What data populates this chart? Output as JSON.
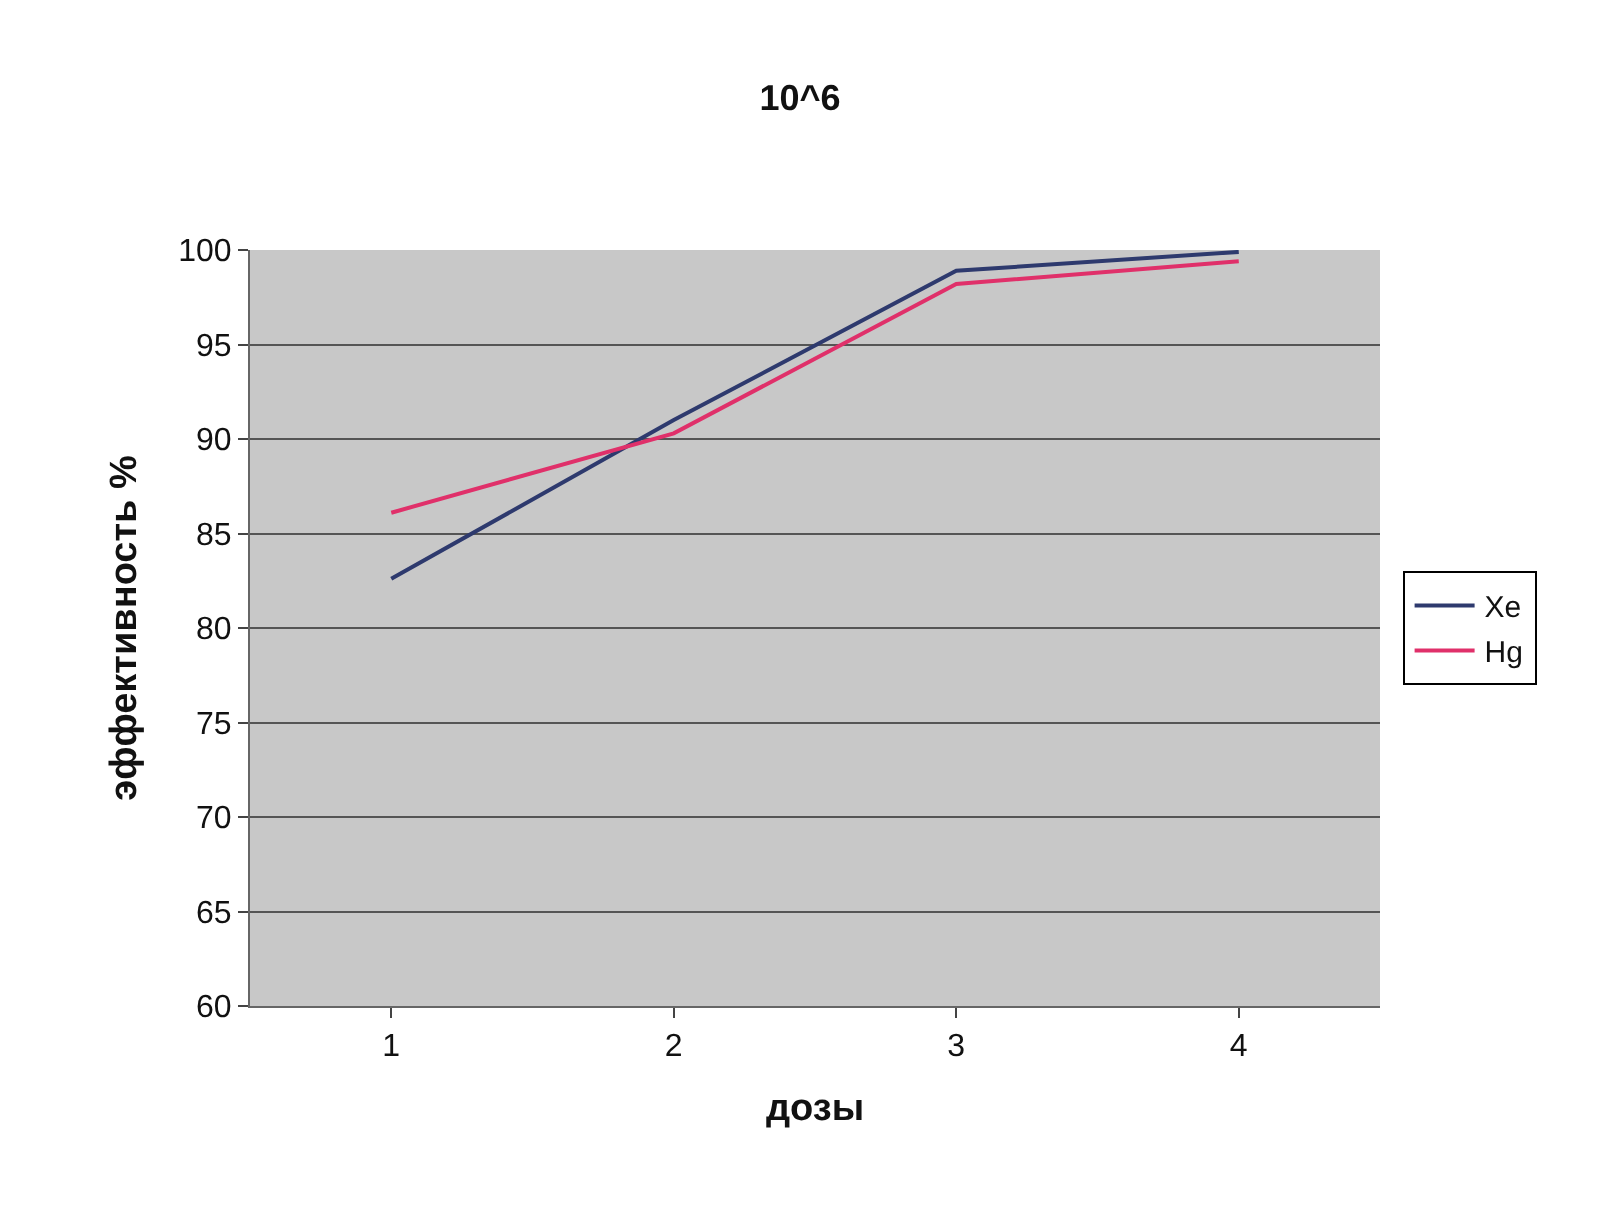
{
  "chart_data": {
    "type": "line",
    "title": "10^6",
    "xlabel": "дозы",
    "ylabel": "эффективность %",
    "categories": [
      "1",
      "2",
      "3",
      "4"
    ],
    "series": [
      {
        "name": "Xe",
        "color": "#2e3a6e",
        "values": [
          82.6,
          91.0,
          98.9,
          99.9
        ]
      },
      {
        "name": "Hg",
        "color": "#e0306a",
        "values": [
          86.1,
          90.3,
          98.2,
          99.4
        ]
      }
    ],
    "ylim": [
      60,
      100
    ],
    "yticks": [
      60,
      65,
      70,
      75,
      80,
      85,
      90,
      95,
      100
    ],
    "grid": "y",
    "legend": "right",
    "marker": "none",
    "line_style": "solid"
  }
}
